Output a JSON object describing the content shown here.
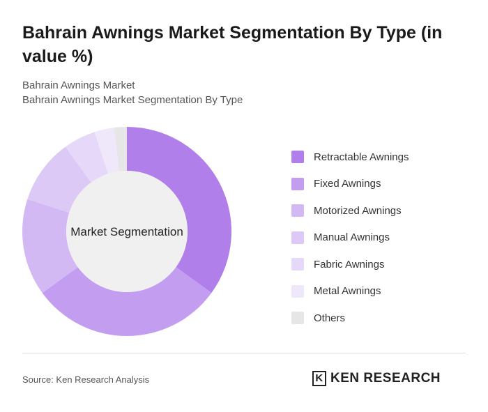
{
  "chart_data": {
    "type": "pie",
    "title": "Bahrain Awnings Market Segmentation By Type (in value %)",
    "breadcrumb": "Bahrain Awnings Market",
    "subtitle": "Bahrain Awnings Market Segmentation By Type",
    "center_label": "Market Segmentation",
    "categories": [
      "Retractable Awnings",
      "Fixed Awnings",
      "Motorized Awnings",
      "Manual Awnings",
      "Fabric Awnings",
      "Metal Awnings",
      "Others"
    ],
    "values": [
      35,
      30,
      15,
      10,
      5,
      3,
      2
    ],
    "colors": [
      "#b17fea",
      "#c39df0",
      "#d3b9f4",
      "#dcc9f6",
      "#e6d8f9",
      "#efe8fb",
      "#e6e6e6"
    ],
    "source": "Source: Ken Research Analysis",
    "logo": "KEN RESEARCH"
  }
}
